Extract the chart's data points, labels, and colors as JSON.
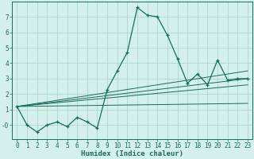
{
  "xlabel": "Humidex (Indice chaleur)",
  "background_color": "#d4f0eb",
  "grid_color": "#a8d8d0",
  "line_color": "#1a6b5a",
  "xlim": [
    -0.5,
    23.5
  ],
  "ylim": [
    -0.9,
    8.0
  ],
  "xticks": [
    0,
    1,
    2,
    3,
    4,
    5,
    6,
    7,
    8,
    9,
    10,
    11,
    12,
    13,
    14,
    15,
    16,
    17,
    18,
    19,
    20,
    21,
    22,
    23
  ],
  "yticks": [
    0,
    1,
    2,
    3,
    4,
    5,
    6,
    7
  ],
  "ytick_labels": [
    "-0",
    "1",
    "2",
    "3",
    "4",
    "5",
    "6",
    "7"
  ],
  "main_x": [
    0,
    1,
    2,
    3,
    4,
    5,
    6,
    7,
    8,
    9,
    10,
    11,
    12,
    13,
    14,
    15,
    16,
    17,
    18,
    19,
    20,
    21,
    22,
    23
  ],
  "main_y": [
    1.2,
    0.0,
    -0.45,
    0.0,
    0.2,
    -0.1,
    0.5,
    0.2,
    -0.2,
    2.3,
    3.5,
    4.7,
    7.6,
    7.1,
    7.0,
    5.8,
    4.3,
    2.7,
    3.3,
    2.6,
    4.2,
    2.9,
    3.0,
    3.0
  ],
  "trend_lines": [
    {
      "x": [
        0,
        23
      ],
      "y": [
        1.2,
        1.4
      ]
    },
    {
      "x": [
        0,
        23
      ],
      "y": [
        1.2,
        2.6
      ]
    },
    {
      "x": [
        0,
        23
      ],
      "y": [
        1.2,
        3.0
      ]
    },
    {
      "x": [
        0,
        23
      ],
      "y": [
        1.2,
        3.5
      ]
    }
  ]
}
